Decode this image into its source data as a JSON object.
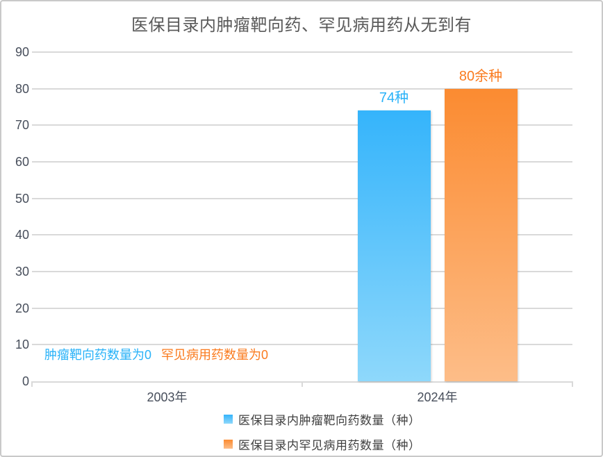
{
  "window": {
    "background": "#ffffff",
    "border_color": "#c9c9c9"
  },
  "chart_data": {
    "type": "bar",
    "title": "医保目录内肿瘤靶向药、罕见病用药从无到有",
    "title_color": "#595959",
    "categories": [
      "2003年",
      "2024年"
    ],
    "series": [
      {
        "name": "医保目录内肿瘤靶向药数量（种）",
        "values": [
          0,
          74
        ],
        "data_labels": [
          "",
          "74种"
        ],
        "color_top": "#35b4fb",
        "color_bottom": "#8ed8fb",
        "label_color": "#29b2f8"
      },
      {
        "name": "医保目录内罕见病用药数量（种）",
        "values": [
          0,
          80
        ],
        "data_labels": [
          "",
          "80余种"
        ],
        "color_top": "#fb8b31",
        "color_bottom": "#fdbd88",
        "label_color": "#fa7b1f"
      }
    ],
    "annotations": [
      {
        "text": "肿瘤靶向药数量为0",
        "color": "#29b2f8"
      },
      {
        "text": "罕见病用药数量为0",
        "color": "#fa7b1f"
      }
    ],
    "ylim": [
      0,
      90
    ],
    "yticks": [
      0,
      10,
      20,
      30,
      40,
      50,
      60,
      70,
      80,
      90
    ],
    "grid": true,
    "gridline_color": "#d9d9d9",
    "axis_label_color": "#474e5b",
    "legend_position": "bottom"
  }
}
